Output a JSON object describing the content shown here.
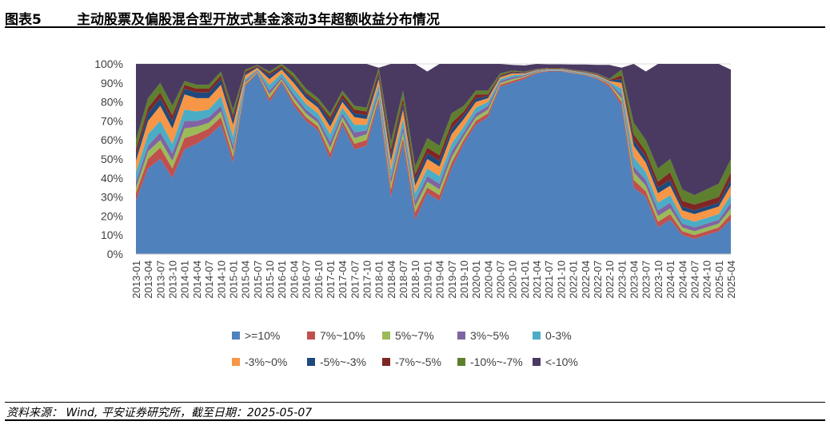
{
  "figure": {
    "number": "图表5",
    "title": "主动股票及偏股混合型开放式基金滚动3年超额收益分布情况"
  },
  "source": "资料来源： Wind, 平安证券研究所，截至日期：2025-05-07",
  "chart_data": {
    "type": "area",
    "stacked": true,
    "ylim": [
      0,
      100
    ],
    "y_unit": "%",
    "y_ticks": [
      "0%",
      "10%",
      "20%",
      "30%",
      "40%",
      "50%",
      "60%",
      "70%",
      "80%",
      "90%",
      "100%"
    ],
    "x_tick_labels": [
      "2013-01",
      "2013-04",
      "2013-07",
      "2013-10",
      "2014-01",
      "2014-04",
      "2014-07",
      "2014-10",
      "2015-01",
      "2015-04",
      "2015-07",
      "2015-10",
      "2016-01",
      "2016-04",
      "2016-07",
      "2016-10",
      "2017-01",
      "2017-04",
      "2017-07",
      "2017-10",
      "2018-01",
      "2018-04",
      "2018-07",
      "2018-10",
      "2019-01",
      "2019-04",
      "2019-07",
      "2019-10",
      "2020-01",
      "2020-04",
      "2020-07",
      "2020-10",
      "2021-01",
      "2021-04",
      "2021-07",
      "2021-10",
      "2022-01",
      "2022-04",
      "2022-07",
      "2022-10",
      "2023-01",
      "2023-04",
      "2023-07",
      "2023-10",
      "2024-01",
      "2024-04",
      "2024-07",
      "2024-10",
      "2025-01",
      "2025-04"
    ],
    "legend_position": "bottom",
    "x": [
      "2013-01",
      "2013-04",
      "2013-07",
      "2013-10",
      "2014-01",
      "2014-04",
      "2014-07",
      "2014-10",
      "2015-01",
      "2015-04",
      "2015-07",
      "2015-10",
      "2016-01",
      "2016-04",
      "2016-07",
      "2016-10",
      "2017-01",
      "2017-04",
      "2017-07",
      "2017-10",
      "2018-01",
      "2018-04",
      "2018-07",
      "2018-10",
      "2019-01",
      "2019-04",
      "2019-07",
      "2019-10",
      "2020-01",
      "2020-04",
      "2020-07",
      "2020-10",
      "2021-01",
      "2021-04",
      "2021-07",
      "2021-10",
      "2022-01",
      "2022-04",
      "2022-07",
      "2022-10",
      "2023-01",
      "2023-04",
      "2023-07",
      "2023-10",
      "2024-01",
      "2024-04",
      "2024-07",
      "2024-10",
      "2025-01",
      "2025-04"
    ],
    "series": [
      {
        "name": ">=10%",
        "color": "#4F81BD",
        "values": [
          28,
          45,
          50,
          40,
          55,
          58,
          62,
          68,
          48,
          88,
          95,
          80,
          90,
          78,
          70,
          65,
          50,
          68,
          55,
          57,
          80,
          30,
          58,
          18,
          32,
          28,
          45,
          58,
          68,
          72,
          88,
          90,
          92,
          95,
          96,
          96,
          95,
          94,
          92,
          88,
          78,
          35,
          30,
          14,
          18,
          10,
          8,
          10,
          12,
          18
        ]
      },
      {
        "name": "7%~10%",
        "color": "#C0504D",
        "values": [
          4,
          5,
          6,
          5,
          6,
          5,
          4,
          4,
          3,
          1,
          0.5,
          2,
          1,
          2,
          2,
          2,
          3,
          2,
          3,
          3,
          2,
          4,
          3,
          4,
          3,
          3,
          3,
          2,
          2,
          2,
          1,
          1,
          1,
          0.5,
          0.3,
          0.3,
          0.3,
          0.3,
          0.5,
          1,
          2,
          4,
          3,
          3,
          3,
          2,
          2,
          2,
          2,
          3
        ]
      },
      {
        "name": "5%~7%",
        "color": "#9BBB59",
        "values": [
          3,
          4,
          4,
          4,
          5,
          4,
          3,
          3,
          3,
          1,
          0.5,
          2,
          1,
          2,
          2,
          2,
          3,
          2,
          3,
          3,
          2,
          3,
          3,
          3,
          3,
          3,
          3,
          2,
          2,
          2,
          1,
          1,
          0.5,
          0.3,
          0.2,
          0.2,
          0.2,
          0.3,
          0.3,
          0.5,
          2,
          4,
          3,
          3,
          3,
          2,
          2,
          2,
          2,
          3
        ]
      },
      {
        "name": "3%~5%",
        "color": "#8064A2",
        "values": [
          3,
          3,
          4,
          4,
          4,
          3,
          3,
          3,
          3,
          1,
          0.5,
          2,
          1,
          2,
          2,
          2,
          3,
          2,
          3,
          2,
          2,
          3,
          3,
          3,
          3,
          3,
          3,
          2,
          2,
          2,
          1,
          1,
          0.5,
          0.3,
          0.2,
          0.2,
          0.2,
          0.3,
          0.3,
          0.5,
          2,
          3,
          3,
          3,
          3,
          2,
          2,
          2,
          2,
          3
        ]
      },
      {
        "name": "0-3%",
        "color": "#4BACC6",
        "values": [
          5,
          6,
          6,
          5,
          6,
          5,
          4,
          5,
          5,
          1,
          0.5,
          3,
          2,
          3,
          3,
          3,
          4,
          3,
          4,
          3,
          3,
          4,
          4,
          4,
          4,
          4,
          4,
          3,
          3,
          2,
          1,
          1,
          0.5,
          0.3,
          0.3,
          0.3,
          0.3,
          0.3,
          0.5,
          0.5,
          3,
          5,
          4,
          4,
          4,
          3,
          3,
          3,
          3,
          4
        ]
      },
      {
        "name": "-3%~0%",
        "color": "#F79646",
        "values": [
          6,
          7,
          8,
          8,
          8,
          7,
          6,
          6,
          6,
          2,
          1,
          3,
          2,
          3,
          3,
          3,
          4,
          3,
          4,
          3,
          3,
          5,
          5,
          4,
          5,
          5,
          5,
          4,
          3,
          2,
          1,
          1,
          0.5,
          0.3,
          0.3,
          0.3,
          0.3,
          0.3,
          0.5,
          0.5,
          3,
          6,
          5,
          5,
          5,
          4,
          4,
          4,
          4,
          5
        ]
      },
      {
        "name": "-5%~-3%",
        "color": "#1F497D",
        "values": [
          3,
          4,
          4,
          4,
          3,
          3,
          3,
          3,
          3,
          1,
          0.5,
          2,
          1,
          2,
          2,
          2,
          3,
          2,
          2,
          2,
          2,
          3,
          3,
          3,
          3,
          3,
          3,
          2,
          2,
          1,
          0.5,
          0.5,
          0.3,
          0.2,
          0.2,
          0.2,
          0.2,
          0.2,
          0.3,
          0.3,
          2,
          3,
          3,
          3,
          3,
          2,
          2,
          2,
          2,
          3
        ]
      },
      {
        "name": "-7%~-5%",
        "color": "#7F2624",
        "values": [
          3,
          3,
          3,
          3,
          2,
          2,
          2,
          2,
          2,
          1,
          0.5,
          1,
          1,
          1,
          1,
          1,
          2,
          2,
          2,
          2,
          2,
          3,
          3,
          3,
          3,
          3,
          3,
          2,
          2,
          1,
          0.5,
          0.5,
          0.3,
          0.2,
          0.2,
          0.2,
          0.2,
          0.2,
          0.3,
          0.3,
          2,
          3,
          3,
          3,
          4,
          3,
          3,
          3,
          3,
          4
        ]
      },
      {
        "name": "-10%~-7%",
        "color": "#5E7F2E",
        "values": [
          5,
          5,
          5,
          5,
          2,
          2,
          2,
          2,
          3,
          1,
          0.5,
          1,
          1,
          2,
          2,
          2,
          2,
          2,
          2,
          2,
          2,
          4,
          4,
          4,
          5,
          5,
          5,
          3,
          2,
          2,
          1,
          0.5,
          0.3,
          0.2,
          0.2,
          0.2,
          0.2,
          0.3,
          0.3,
          0.5,
          3,
          6,
          6,
          7,
          7,
          6,
          5,
          6,
          7,
          7
        ]
      },
      {
        "name": "<-10%",
        "color": "#4A3A62",
        "values": [
          40,
          18,
          10,
          22,
          9,
          11,
          11,
          4,
          24,
          3,
          0.5,
          4,
          0,
          5,
          13,
          18,
          26,
          14,
          22,
          23,
          0,
          41,
          14,
          54,
          35,
          43,
          26,
          22,
          14,
          14,
          5,
          3,
          3.3,
          2.9,
          1.9,
          1.9,
          2.8,
          3.5,
          4.5,
          7.4,
          1,
          31,
          36,
          55,
          50,
          66,
          69,
          66,
          63,
          47
        ]
      }
    ]
  }
}
